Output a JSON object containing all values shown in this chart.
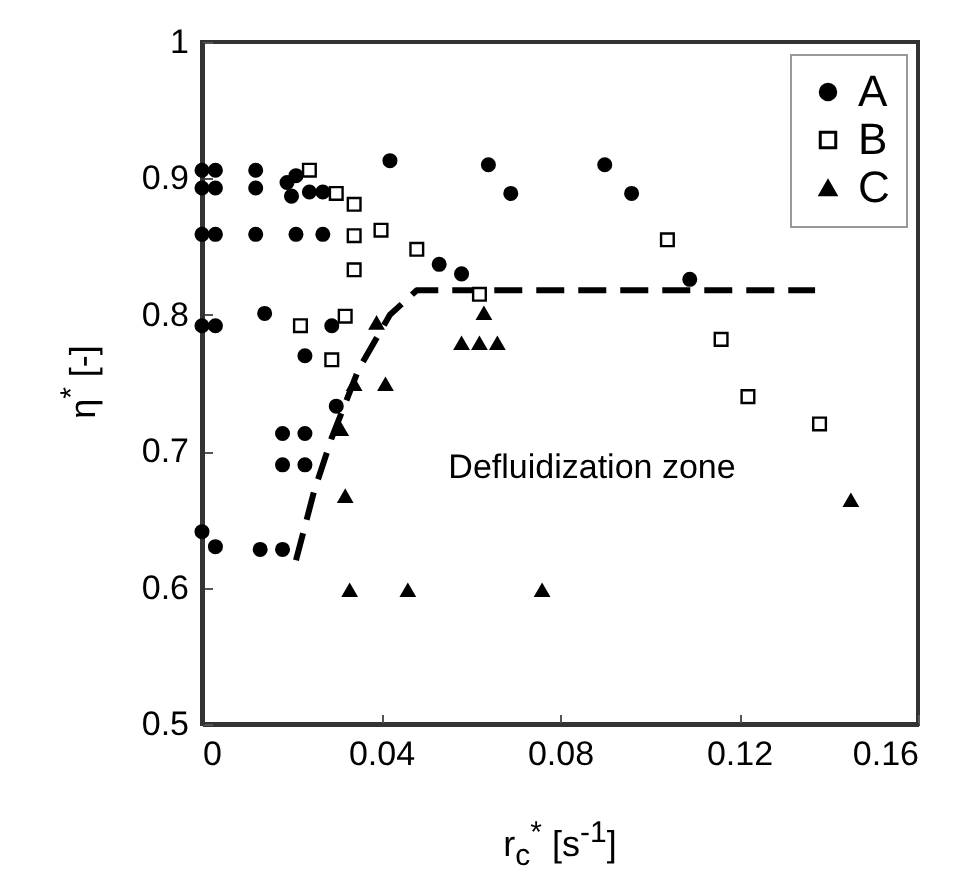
{
  "chart_data": {
    "type": "scatter",
    "xlabel": "r$_{c}$$^{*}$ [s$^{-1}$]",
    "ylabel": "η$^{*}$ [-]",
    "xlim": [
      0,
      0.16
    ],
    "xticks": [
      0,
      0.04,
      0.08,
      0.12,
      0.16
    ],
    "ylim": [
      0.5,
      1
    ],
    "yticks": [
      0.5,
      0.6,
      0.7,
      0.8,
      0.9,
      1
    ],
    "legend": "top right",
    "annotations": [
      "Defluidization zone"
    ],
    "line_style": "dashed",
    "series": [
      {
        "name": "A",
        "color": "#000000",
        "marker": "circle",
        "x": [
          0,
          0,
          0.003,
          0.003,
          0.012,
          0.012,
          0.019,
          0.021,
          0.02,
          0.024,
          0.027,
          0.042,
          0.064,
          0.069,
          0.09,
          0.096,
          0.109,
          0,
          0.003,
          0.012,
          0.021,
          0.027,
          0.053,
          0.058,
          0,
          0.003,
          0.014,
          0.029,
          0.023,
          0.018,
          0.023,
          0.03,
          0.018,
          0.023,
          0,
          0.003,
          0.013,
          0.018
        ],
        "values": [
          0.906,
          0.893,
          0.906,
          0.893,
          0.906,
          0.893,
          0.897,
          0.902,
          0.887,
          0.89,
          0.89,
          0.913,
          0.91,
          0.889,
          0.91,
          0.889,
          0.826,
          0.859,
          0.859,
          0.859,
          0.859,
          0.859,
          0.837,
          0.83,
          0.792,
          0.792,
          0.801,
          0.792,
          0.77,
          0.713,
          0.713,
          0.733,
          0.69,
          0.69,
          0.641,
          0.63,
          0.628,
          0.628
        ]
      },
      {
        "name": "B",
        "color": "#000000",
        "marker": "square",
        "x": [
          0.024,
          0.03,
          0.034,
          0.034,
          0.04,
          0.034,
          0.048,
          0.022,
          0.032,
          0.029,
          0.062,
          0.104,
          0.116,
          0.122,
          0.138
        ],
        "values": [
          0.906,
          0.889,
          0.881,
          0.858,
          0.862,
          0.833,
          0.848,
          0.792,
          0.799,
          0.767,
          0.815,
          0.855,
          0.782,
          0.74,
          0.72
        ]
      },
      {
        "name": "C",
        "color": "#000000",
        "marker": "triangle",
        "x": [
          0.039,
          0.063,
          0.058,
          0.062,
          0.066,
          0.034,
          0.041,
          0.031,
          0.032,
          0.033,
          0.046,
          0.076,
          0.145
        ],
        "values": [
          0.794,
          0.801,
          0.779,
          0.779,
          0.779,
          0.749,
          0.749,
          0.716,
          0.667,
          0.598,
          0.598,
          0.598,
          0.664
        ]
      },
      {
        "type": "line",
        "color": "#000000",
        "x": [
          0.021,
          0.025,
          0.029,
          0.035,
          0.042,
          0.048,
          0.137
        ],
        "values": [
          0.62,
          0.67,
          0.71,
          0.76,
          0.8,
          0.818,
          0.818
        ]
      }
    ]
  }
}
